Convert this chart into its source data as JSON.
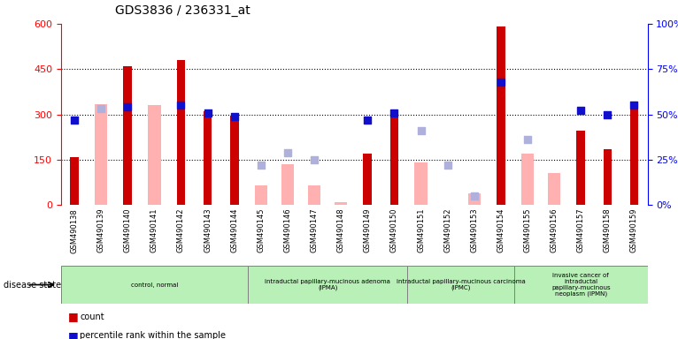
{
  "title": "GDS3836 / 236331_at",
  "samples": [
    "GSM490138",
    "GSM490139",
    "GSM490140",
    "GSM490141",
    "GSM490142",
    "GSM490143",
    "GSM490144",
    "GSM490145",
    "GSM490146",
    "GSM490147",
    "GSM490148",
    "GSM490149",
    "GSM490150",
    "GSM490151",
    "GSM490152",
    "GSM490153",
    "GSM490154",
    "GSM490155",
    "GSM490156",
    "GSM490157",
    "GSM490158",
    "GSM490159"
  ],
  "count": [
    160,
    0,
    460,
    0,
    480,
    310,
    295,
    0,
    0,
    0,
    0,
    170,
    295,
    0,
    0,
    0,
    590,
    0,
    0,
    245,
    185,
    335
  ],
  "percentile_rank_pct": [
    47,
    null,
    54,
    null,
    55,
    51,
    49,
    null,
    null,
    null,
    null,
    47,
    51,
    null,
    null,
    null,
    68,
    null,
    null,
    52,
    50,
    55
  ],
  "value_absent": [
    null,
    335,
    null,
    330,
    null,
    null,
    null,
    65,
    135,
    65,
    10,
    null,
    null,
    140,
    null,
    40,
    null,
    170,
    105,
    null,
    null,
    null
  ],
  "rank_absent_pct": [
    null,
    53,
    null,
    null,
    null,
    null,
    null,
    22,
    29,
    25,
    null,
    null,
    null,
    41,
    22,
    5,
    null,
    36,
    null,
    null,
    null,
    null
  ],
  "disease_groups": [
    {
      "label": "control, normal",
      "start": 0,
      "end": 7
    },
    {
      "label": "intraductal papillary-mucinous adenoma\n(IPMA)",
      "start": 7,
      "end": 13
    },
    {
      "label": "intraductal papillary-mucinous carcinoma\n(IPMC)",
      "start": 13,
      "end": 17
    },
    {
      "label": "invasive cancer of\nintraductal\npapillary-mucinous\nneoplasm (IPMN)",
      "start": 17,
      "end": 22
    }
  ],
  "ylim_left": [
    0,
    600
  ],
  "ylim_right": [
    0,
    100
  ],
  "yticks_left": [
    0,
    150,
    300,
    450,
    600
  ],
  "yticks_right": [
    0,
    25,
    50,
    75,
    100
  ],
  "bar_color": "#cc0000",
  "rank_color": "#1010cc",
  "absent_value_color": "#ffb0b0",
  "absent_rank_color": "#b0b0dd",
  "group_color": "#b8f0b8",
  "xtick_bg": "#d8d8d8"
}
